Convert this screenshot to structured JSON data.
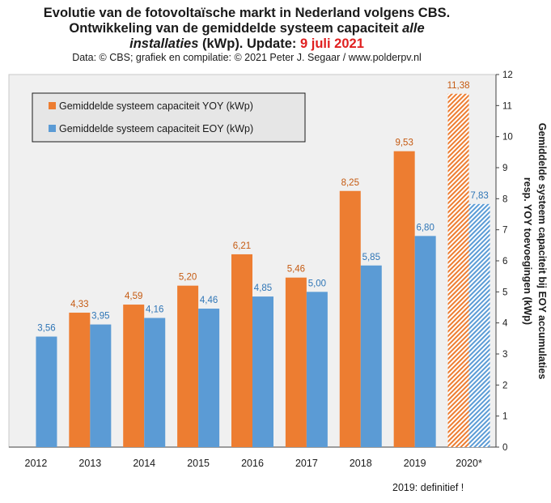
{
  "title": {
    "line1": "Evolutie van de fotovoltaïsche markt in Nederland volgens CBS.",
    "line2_a": "Ontwikkeling van de gemiddelde systeem capaciteit ",
    "line2_b": "alle",
    "line3_a": "installaties",
    "line3_b": " (kWp). Update: ",
    "line3_date": "9 juli 2021"
  },
  "credits": "Data: © CBS; grafiek en compilatie: © 2021 Peter J. Segaar / www.polderpv.nl",
  "footnote": "2019: definitief !",
  "colors": {
    "yoy": "#ed7d31",
    "eoy": "#5b9bd5",
    "plot_bg": "#f0f0f0",
    "legend_bg": "#e6e6e6",
    "yoy_label": "#c55a11",
    "eoy_label": "#2e75b6"
  },
  "chart_data": {
    "type": "bar",
    "categories": [
      "2012",
      "2013",
      "2014",
      "2015",
      "2016",
      "2017",
      "2018",
      "2019",
      "2020*"
    ],
    "series": [
      {
        "name": "Gemiddelde systeem capaciteit YOY (kWp)",
        "values": [
          null,
          4.33,
          4.59,
          5.2,
          6.21,
          5.46,
          8.25,
          9.53,
          11.38
        ],
        "labels": [
          "",
          "4,33",
          "4,59",
          "5,20",
          "6,21",
          "5,46",
          "8,25",
          "9,53",
          "11,38"
        ]
      },
      {
        "name": "Gemiddelde systeem capaciteit EOY (kWp)",
        "values": [
          3.56,
          3.95,
          4.16,
          4.46,
          4.85,
          5.0,
          5.85,
          6.8,
          7.83
        ],
        "labels": [
          "3,56",
          "3,95",
          "4,16",
          "4,46",
          "4,85",
          "5,00",
          "5,85",
          "6,80",
          "7,83"
        ]
      }
    ],
    "provisional_categories": [
      "2020*"
    ],
    "ylabel_line1": "Gemiddelde systeem capaciteit bij EOY accumulaties",
    "ylabel_line2": "resp. YOY toevoegingen (kWp)",
    "ylim": [
      0,
      12
    ],
    "yticks": [
      "0",
      "1",
      "2",
      "3",
      "4",
      "5",
      "6",
      "7",
      "8",
      "9",
      "10",
      "11",
      "12"
    ],
    "y_axis_position": "right",
    "grid": false,
    "legend_position": "top-left"
  }
}
